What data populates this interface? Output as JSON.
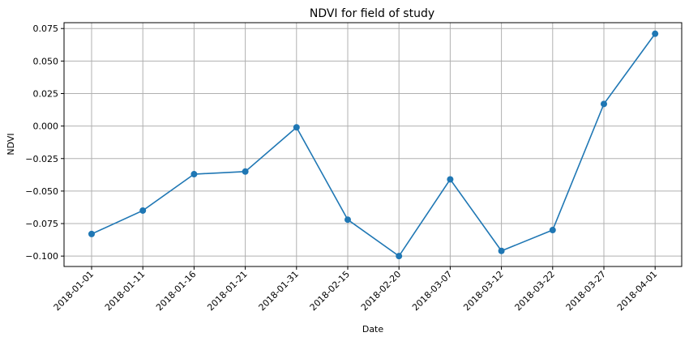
{
  "chart_data": {
    "type": "line",
    "title": "NDVI for field of study",
    "xlabel": "Date",
    "ylabel": "NDVI",
    "categories": [
      "2018-01-01",
      "2018-01-11",
      "2018-01-16",
      "2018-01-21",
      "2018-01-31",
      "2018-02-15",
      "2018-02-20",
      "2018-03-07",
      "2018-03-12",
      "2018-03-22",
      "2018-03-27",
      "2018-04-01"
    ],
    "series": [
      {
        "values": [
          -0.083,
          -0.065,
          -0.037,
          -0.035,
          -0.001,
          -0.072,
          -0.1,
          -0.041,
          -0.096,
          -0.08,
          0.017,
          0.071
        ],
        "color": "#1f77b4"
      }
    ],
    "yticks": [
      "0.075",
      "0.050",
      "0.025",
      "0.000",
      "−0.025",
      "−0.050",
      "−0.075",
      "−0.100"
    ],
    "ytick_values": [
      0.075,
      0.05,
      0.025,
      0.0,
      -0.025,
      -0.05,
      -0.075,
      -0.1
    ],
    "ylim": [
      -0.108,
      0.0795
    ],
    "grid": true,
    "marker": "circle",
    "x_tick_rotation_deg": 45
  }
}
